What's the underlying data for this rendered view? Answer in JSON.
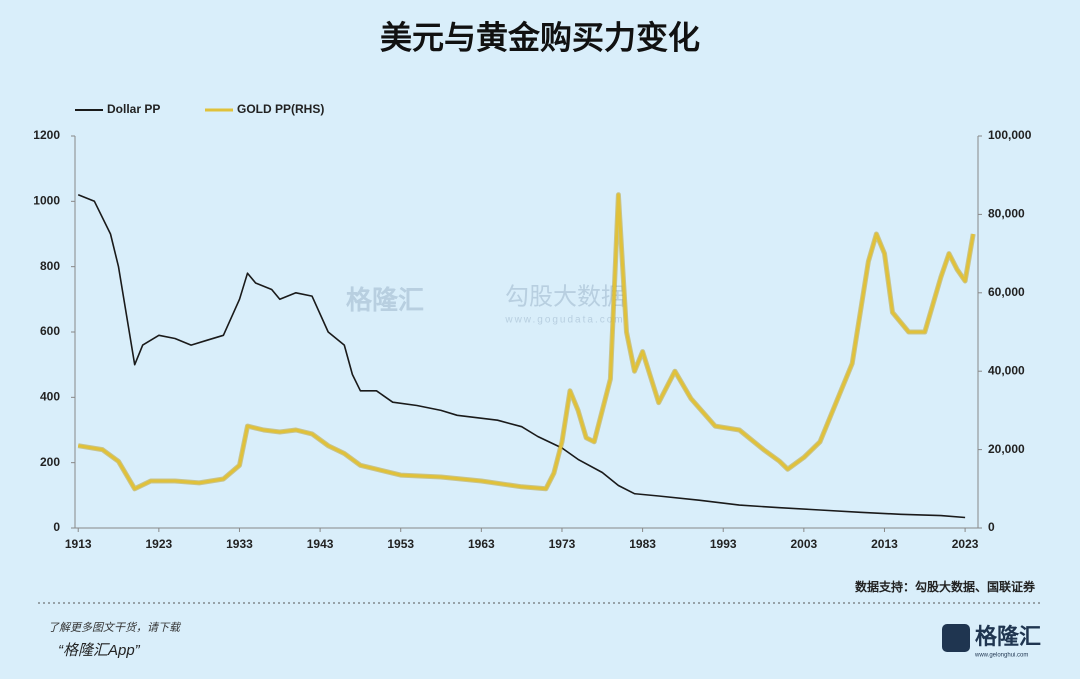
{
  "chart_data": {
    "type": "line",
    "title": "美元与黄金购买力变化",
    "source": "数据支持：勾股大数据、国联证券",
    "watermark": [
      "格隆汇",
      "勾股大数据",
      "www.gogudata.com"
    ],
    "footer": {
      "line1": "了解更多图文干货，请下载",
      "line2": "“格隆汇App”",
      "logo": "格隆汇",
      "logo_url": "www.gelonghui.com"
    },
    "xlim": [
      1912.6,
      2024.6
    ],
    "xticks": [
      1913,
      1923,
      1933,
      1943,
      1953,
      1963,
      1973,
      1983,
      1993,
      2003,
      2013,
      2023
    ],
    "ylim": [
      0,
      1200
    ],
    "yticks": [
      0,
      200,
      400,
      600,
      800,
      1000,
      1200
    ],
    "y2lim": [
      0,
      100000
    ],
    "y2ticks": [
      0,
      {
        "value": 20000,
        "label": "20,000"
      },
      {
        "value": 40000,
        "label": "40,000"
      },
      {
        "value": 60000,
        "label": "60,000"
      },
      {
        "value": 80000,
        "label": "80,000"
      },
      {
        "value": 100000,
        "label": "100,000"
      }
    ],
    "series": [
      {
        "name": "Dollar PP",
        "color": "#1a1a1a",
        "x": [
          1913,
          1915,
          1917,
          1918,
          1919,
          1920,
          1921,
          1923,
          1925,
          1927,
          1929,
          1931,
          1933,
          1934,
          1935,
          1937,
          1938,
          1940,
          1942,
          1944,
          1946,
          1947,
          1948,
          1950,
          1952,
          1955,
          1958,
          1960,
          1965,
          1968,
          1970,
          1973,
          1975,
          1978,
          1980,
          1982,
          1985,
          1990,
          1995,
          2000,
          2005,
          2010,
          2015,
          2020,
          2023
        ],
        "values": [
          1020,
          1000,
          900,
          800,
          650,
          500,
          560,
          590,
          580,
          560,
          575,
          590,
          700,
          780,
          750,
          730,
          700,
          720,
          710,
          600,
          560,
          470,
          420,
          420,
          385,
          375,
          360,
          345,
          330,
          310,
          280,
          245,
          210,
          170,
          130,
          105,
          98,
          85,
          70,
          62,
          55,
          48,
          42,
          38,
          32
        ]
      },
      {
        "name": "GOLD PP(RHS)",
        "color": "#e0c13a",
        "axis": "y2",
        "x": [
          1913,
          1916,
          1918,
          1920,
          1922,
          1925,
          1928,
          1931,
          1933,
          1934,
          1936,
          1938,
          1940,
          1942,
          1944,
          1946,
          1948,
          1950,
          1953,
          1958,
          1963,
          1968,
          1971,
          1972,
          1973,
          1974,
          1975,
          1976,
          1977,
          1978,
          1979,
          1980,
          1981,
          1982,
          1983,
          1985,
          1987,
          1989,
          1992,
          1995,
          1998,
          2000,
          2001,
          2003,
          2005,
          2007,
          2009,
          2011,
          2012,
          2013,
          2014,
          2016,
          2018,
          2020,
          2021,
          2022,
          2023,
          2024
        ],
        "values": [
          21000,
          20000,
          17000,
          10000,
          12000,
          12000,
          11500,
          12500,
          16000,
          26000,
          25000,
          24500,
          25000,
          24000,
          21000,
          19000,
          16000,
          15000,
          13500,
          13000,
          12000,
          10500,
          10000,
          14000,
          22000,
          35000,
          30000,
          23000,
          22000,
          30000,
          38000,
          85000,
          50000,
          40000,
          45000,
          32000,
          40000,
          33000,
          26000,
          25000,
          20000,
          17000,
          15000,
          18000,
          22000,
          32000,
          42000,
          68000,
          75000,
          70000,
          55000,
          50000,
          50000,
          64000,
          70000,
          66000,
          63000,
          75000
        ]
      }
    ]
  }
}
